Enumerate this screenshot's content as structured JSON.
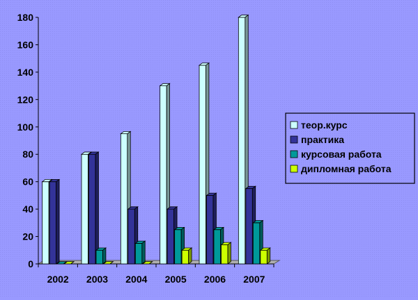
{
  "chart_data": {
    "type": "bar",
    "title": "",
    "xlabel": "",
    "ylabel": "",
    "ylim": [
      0,
      180
    ],
    "ytick_step": 20,
    "grid": false,
    "legend_position": "right",
    "categories": [
      "2002",
      "2003",
      "2004",
      "2005",
      "2006",
      "2007"
    ],
    "series": [
      {
        "name": "теор.курс",
        "values": [
          60,
          80,
          95,
          130,
          145,
          180
        ],
        "color": "#ccffff"
      },
      {
        "name": "практика",
        "values": [
          60,
          80,
          40,
          40,
          50,
          55
        ],
        "color": "#333399"
      },
      {
        "name": "курсовая работа",
        "values": [
          0,
          10,
          15,
          25,
          25,
          30
        ],
        "color": "#009999"
      },
      {
        "name": "дипломная работа",
        "values": [
          0,
          0,
          0,
          10,
          14,
          10
        ],
        "color": "#ccff00"
      }
    ]
  }
}
